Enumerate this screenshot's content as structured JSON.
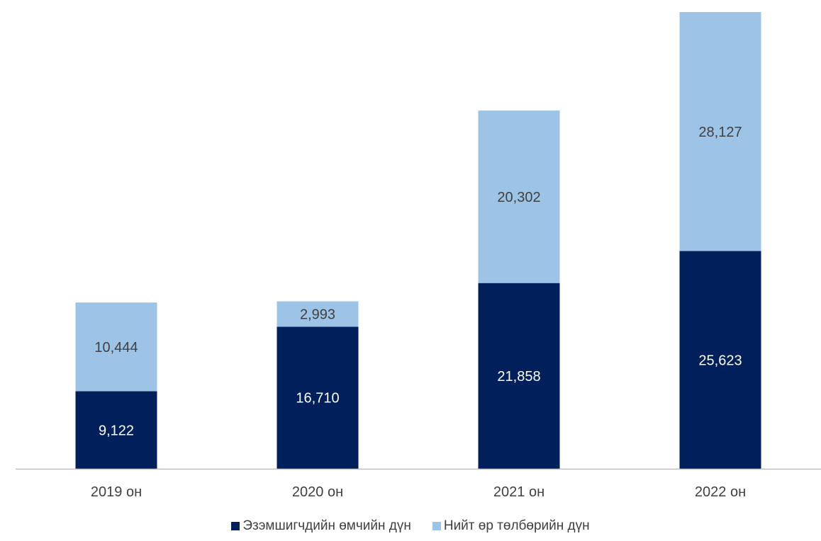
{
  "chart_data": {
    "type": "bar",
    "stacked": true,
    "categories": [
      "2019 он",
      "2020 он",
      "2021 он",
      "2022 он"
    ],
    "series": [
      {
        "name": "Эзэмшигчдийн өмчийн дүн",
        "color": "#001f5b",
        "label_color": "#ffffff",
        "values": [
          9122,
          16710,
          21858,
          25623
        ],
        "labels": [
          "9,122",
          "16,710",
          "21,858",
          "25,623"
        ]
      },
      {
        "name": "Нийт өр төлбөрийн дүн",
        "color": "#9dc3e6",
        "label_color": "#404040",
        "values": [
          10444,
          2993,
          20302,
          28127
        ],
        "labels": [
          "10,444",
          "2,993",
          "20,302",
          "28,127"
        ]
      }
    ],
    "ylim": [
      0,
      54000
    ],
    "grid": false,
    "legend_position": "bottom",
    "axis_color": "#bfbfbf",
    "tick_label_color": "#404040"
  }
}
